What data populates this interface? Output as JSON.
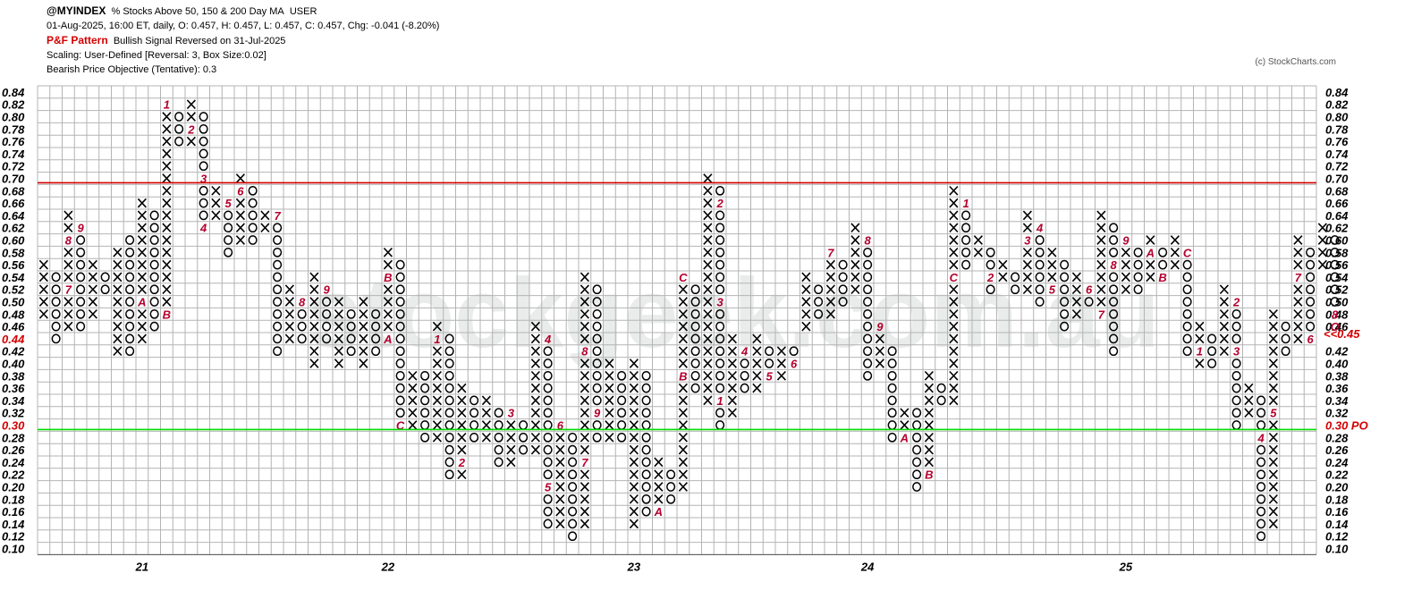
{
  "header": {
    "symbol": "@MYINDEX",
    "name": "% Stocks Above 50, 150 & 200 Day MA",
    "exchange": "USER",
    "quote": "01-Aug-2025, 16:00 ET, daily, O: 0.457, H: 0.457, L: 0.457, C: 0.457, Chg: -0.041 (-8.20%)",
    "pattern_label": "P&F Pattern",
    "pattern_value": "Bullish Signal Reversed on 31-Jul-2025",
    "scaling": "Scaling: User-Defined [Reversal: 3, Box Size:0.02]",
    "objective": "Bearish Price Objective (Tentative): 0.3"
  },
  "credit": "(c) StockCharts.com",
  "watermark": "stockgeek.com.au",
  "colors": {
    "grid": "#b4b4b4",
    "mark": "#000000",
    "month": "#b4002d",
    "resistance": "#d40000",
    "objective": "#00dd00"
  },
  "chart_data": {
    "type": "point-and-figure",
    "box_size": 0.02,
    "reversal": 3,
    "y_range": [
      0.1,
      0.84
    ],
    "y_ticks": [
      "0.84",
      "0.82",
      "0.80",
      "0.78",
      "0.76",
      "0.74",
      "0.72",
      "0.70",
      "0.68",
      "0.66",
      "0.64",
      "0.62",
      "0.60",
      "0.58",
      "0.56",
      "0.54",
      "0.52",
      "0.50",
      "0.48",
      "0.46",
      "0.44",
      "0.42",
      "0.40",
      "0.38",
      "0.36",
      "0.34",
      "0.32",
      "0.30",
      "0.28",
      "0.26",
      "0.24",
      "0.22",
      "0.20",
      "0.18",
      "0.16",
      "0.14",
      "0.12",
      "0.10"
    ],
    "x_labels": [
      {
        "label": "21",
        "column": 8
      },
      {
        "label": "22",
        "column": 28
      },
      {
        "label": "23",
        "column": 48
      },
      {
        "label": "24",
        "column": 67
      },
      {
        "label": "25",
        "column": 88
      }
    ],
    "left_marker": {
      "value": 0.44,
      "text": "0.44"
    },
    "right_marker": {
      "value": 0.45,
      "text": "<<0.45"
    },
    "objective_marker": {
      "value": 0.3,
      "text": "0.30 PO"
    },
    "resistance_line": 0.7,
    "objective_line": 0.3,
    "columns": [
      {
        "t": "X",
        "lo": 0.48,
        "hi": 0.56
      },
      {
        "t": "O",
        "lo": 0.44,
        "hi": 0.54
      },
      {
        "t": "X",
        "lo": 0.46,
        "hi": 0.64,
        "m": [
          [
            0.6,
            "8"
          ],
          [
            0.52,
            "7"
          ]
        ]
      },
      {
        "t": "O",
        "lo": 0.46,
        "hi": 0.62,
        "m": [
          [
            0.62,
            "9"
          ]
        ]
      },
      {
        "t": "X",
        "lo": 0.48,
        "hi": 0.56
      },
      {
        "t": "O",
        "lo": 0.52,
        "hi": 0.54
      },
      {
        "t": "X",
        "lo": 0.42,
        "hi": 0.58
      },
      {
        "t": "O",
        "lo": 0.42,
        "hi": 0.6
      },
      {
        "t": "X",
        "lo": 0.44,
        "hi": 0.66,
        "m": [
          [
            0.5,
            "A"
          ]
        ]
      },
      {
        "t": "O",
        "lo": 0.46,
        "hi": 0.64
      },
      {
        "t": "X",
        "lo": 0.48,
        "hi": 0.82,
        "m": [
          [
            0.82,
            "1"
          ],
          [
            0.48,
            "B"
          ]
        ]
      },
      {
        "t": "O",
        "lo": 0.76,
        "hi": 0.8
      },
      {
        "t": "X",
        "lo": 0.76,
        "hi": 0.82,
        "m": [
          [
            0.78,
            "2"
          ]
        ]
      },
      {
        "t": "O",
        "lo": 0.62,
        "hi": 0.8,
        "m": [
          [
            0.7,
            "3"
          ],
          [
            0.62,
            "4"
          ]
        ]
      },
      {
        "t": "X",
        "lo": 0.64,
        "hi": 0.68
      },
      {
        "t": "O",
        "lo": 0.58,
        "hi": 0.66,
        "m": [
          [
            0.66,
            "5"
          ]
        ]
      },
      {
        "t": "X",
        "lo": 0.6,
        "hi": 0.7,
        "m": [
          [
            0.68,
            "6"
          ]
        ]
      },
      {
        "t": "O",
        "lo": 0.6,
        "hi": 0.68
      },
      {
        "t": "X",
        "lo": 0.62,
        "hi": 0.64
      },
      {
        "t": "O",
        "lo": 0.42,
        "hi": 0.62,
        "m": [
          [
            0.64,
            "7"
          ]
        ]
      },
      {
        "t": "X",
        "lo": 0.44,
        "hi": 0.52
      },
      {
        "t": "O",
        "lo": 0.44,
        "hi": 0.5,
        "m": [
          [
            0.5,
            "8"
          ]
        ]
      },
      {
        "t": "X",
        "lo": 0.4,
        "hi": 0.54
      },
      {
        "t": "O",
        "lo": 0.44,
        "hi": 0.52,
        "m": [
          [
            0.52,
            "9"
          ]
        ]
      },
      {
        "t": "X",
        "lo": 0.4,
        "hi": 0.5
      },
      {
        "t": "O",
        "lo": 0.42,
        "hi": 0.48
      },
      {
        "t": "X",
        "lo": 0.4,
        "hi": 0.5
      },
      {
        "t": "O",
        "lo": 0.42,
        "hi": 0.48
      },
      {
        "t": "X",
        "lo": 0.44,
        "hi": 0.58,
        "m": [
          [
            0.54,
            "B"
          ],
          [
            0.44,
            "A"
          ]
        ]
      },
      {
        "t": "O",
        "lo": 0.3,
        "hi": 0.56,
        "m": [
          [
            0.3,
            "C"
          ]
        ]
      },
      {
        "t": "X",
        "lo": 0.3,
        "hi": 0.38
      },
      {
        "t": "O",
        "lo": 0.28,
        "hi": 0.38
      },
      {
        "t": "X",
        "lo": 0.28,
        "hi": 0.46,
        "m": [
          [
            0.44,
            "1"
          ]
        ]
      },
      {
        "t": "O",
        "lo": 0.22,
        "hi": 0.44
      },
      {
        "t": "X",
        "lo": 0.22,
        "hi": 0.36,
        "m": [
          [
            0.24,
            "2"
          ]
        ]
      },
      {
        "t": "O",
        "lo": 0.28,
        "hi": 0.34
      },
      {
        "t": "X",
        "lo": 0.28,
        "hi": 0.34
      },
      {
        "t": "O",
        "lo": 0.24,
        "hi": 0.32
      },
      {
        "t": "X",
        "lo": 0.24,
        "hi": 0.32,
        "m": [
          [
            0.32,
            "3"
          ]
        ]
      },
      {
        "t": "O",
        "lo": 0.26,
        "hi": 0.3
      },
      {
        "t": "X",
        "lo": 0.26,
        "hi": 0.46
      },
      {
        "t": "O",
        "lo": 0.14,
        "hi": 0.44,
        "m": [
          [
            0.44,
            "4"
          ],
          [
            0.2,
            "5"
          ]
        ]
      },
      {
        "t": "X",
        "lo": 0.14,
        "hi": 0.3,
        "m": [
          [
            0.3,
            "6"
          ]
        ]
      },
      {
        "t": "O",
        "lo": 0.12,
        "hi": 0.28
      },
      {
        "t": "X",
        "lo": 0.14,
        "hi": 0.54,
        "m": [
          [
            0.42,
            "8"
          ],
          [
            0.24,
            "7"
          ]
        ]
      },
      {
        "t": "O",
        "lo": 0.28,
        "hi": 0.52,
        "m": [
          [
            0.32,
            "9"
          ]
        ]
      },
      {
        "t": "X",
        "lo": 0.28,
        "hi": 0.4
      },
      {
        "t": "O",
        "lo": 0.28,
        "hi": 0.38
      },
      {
        "t": "X",
        "lo": 0.14,
        "hi": 0.4
      },
      {
        "t": "O",
        "lo": 0.16,
        "hi": 0.38
      },
      {
        "t": "X",
        "lo": 0.16,
        "hi": 0.24,
        "m": [
          [
            0.16,
            "A"
          ]
        ]
      },
      {
        "t": "O",
        "lo": 0.18,
        "hi": 0.22
      },
      {
        "t": "X",
        "lo": 0.2,
        "hi": 0.54,
        "m": [
          [
            0.54,
            "C"
          ],
          [
            0.38,
            "B"
          ]
        ]
      },
      {
        "t": "O",
        "lo": 0.36,
        "hi": 0.52
      },
      {
        "t": "X",
        "lo": 0.34,
        "hi": 0.7
      },
      {
        "t": "O",
        "lo": 0.3,
        "hi": 0.68,
        "m": [
          [
            0.66,
            "2"
          ],
          [
            0.5,
            "3"
          ],
          [
            0.34,
            "1"
          ]
        ]
      },
      {
        "t": "X",
        "lo": 0.32,
        "hi": 0.44
      },
      {
        "t": "O",
        "lo": 0.36,
        "hi": 0.42,
        "m": [
          [
            0.42,
            "4"
          ]
        ]
      },
      {
        "t": "X",
        "lo": 0.36,
        "hi": 0.44
      },
      {
        "t": "O",
        "lo": 0.38,
        "hi": 0.42,
        "m": [
          [
            0.38,
            "5"
          ]
        ]
      },
      {
        "t": "X",
        "lo": 0.38,
        "hi": 0.42
      },
      {
        "t": "O",
        "lo": 0.4,
        "hi": 0.42,
        "m": [
          [
            0.4,
            "6"
          ]
        ]
      },
      {
        "t": "X",
        "lo": 0.46,
        "hi": 0.54
      },
      {
        "t": "O",
        "lo": 0.48,
        "hi": 0.52
      },
      {
        "t": "X",
        "lo": 0.48,
        "hi": 0.58,
        "m": [
          [
            0.58,
            "7"
          ]
        ]
      },
      {
        "t": "O",
        "lo": 0.5,
        "hi": 0.56
      },
      {
        "t": "X",
        "lo": 0.52,
        "hi": 0.62
      },
      {
        "t": "O",
        "lo": 0.38,
        "hi": 0.6,
        "m": [
          [
            0.6,
            "8"
          ]
        ]
      },
      {
        "t": "X",
        "lo": 0.4,
        "hi": 0.44,
        "m": [
          [
            0.46,
            "9"
          ]
        ]
      },
      {
        "t": "O",
        "lo": 0.28,
        "hi": 0.42
      },
      {
        "t": "X",
        "lo": 0.28,
        "hi": 0.32,
        "m": [
          [
            0.28,
            "A"
          ]
        ]
      },
      {
        "t": "O",
        "lo": 0.2,
        "hi": 0.32
      },
      {
        "t": "X",
        "lo": 0.22,
        "hi": 0.38,
        "m": [
          [
            0.22,
            "B"
          ]
        ]
      },
      {
        "t": "O",
        "lo": 0.34,
        "hi": 0.36
      },
      {
        "t": "X",
        "lo": 0.34,
        "hi": 0.68,
        "m": [
          [
            0.54,
            "C"
          ]
        ]
      },
      {
        "t": "O",
        "lo": 0.56,
        "hi": 0.66,
        "m": [
          [
            0.66,
            "1"
          ]
        ]
      },
      {
        "t": "X",
        "lo": 0.58,
        "hi": 0.6
      },
      {
        "t": "O",
        "lo": 0.52,
        "hi": 0.58,
        "m": [
          [
            0.54,
            "2"
          ]
        ]
      },
      {
        "t": "X",
        "lo": 0.54,
        "hi": 0.56
      },
      {
        "t": "O",
        "lo": 0.52,
        "hi": 0.54
      },
      {
        "t": "X",
        "lo": 0.52,
        "hi": 0.64,
        "m": [
          [
            0.6,
            "3"
          ]
        ]
      },
      {
        "t": "O",
        "lo": 0.5,
        "hi": 0.62,
        "m": [
          [
            0.62,
            "4"
          ]
        ]
      },
      {
        "t": "X",
        "lo": 0.52,
        "hi": 0.58,
        "m": [
          [
            0.52,
            "5"
          ]
        ]
      },
      {
        "t": "O",
        "lo": 0.46,
        "hi": 0.56
      },
      {
        "t": "X",
        "lo": 0.48,
        "hi": 0.54
      },
      {
        "t": "O",
        "lo": 0.5,
        "hi": 0.52,
        "m": [
          [
            0.52,
            "6"
          ]
        ]
      },
      {
        "t": "X",
        "lo": 0.48,
        "hi": 0.64,
        "m": [
          [
            0.48,
            "7"
          ]
        ]
      },
      {
        "t": "O",
        "lo": 0.42,
        "hi": 0.62,
        "m": [
          [
            0.56,
            "8"
          ]
        ]
      },
      {
        "t": "X",
        "lo": 0.52,
        "hi": 0.58,
        "m": [
          [
            0.6,
            "9"
          ]
        ]
      },
      {
        "t": "O",
        "lo": 0.52,
        "hi": 0.58
      },
      {
        "t": "X",
        "lo": 0.54,
        "hi": 0.6,
        "m": [
          [
            0.58,
            "A"
          ]
        ]
      },
      {
        "t": "O",
        "lo": 0.54,
        "hi": 0.58,
        "m": [
          [
            0.54,
            "B"
          ]
        ]
      },
      {
        "t": "X",
        "lo": 0.56,
        "hi": 0.6
      },
      {
        "t": "O",
        "lo": 0.42,
        "hi": 0.58,
        "m": [
          [
            0.58,
            "C"
          ]
        ]
      },
      {
        "t": "X",
        "lo": 0.4,
        "hi": 0.46,
        "m": [
          [
            0.42,
            "1"
          ]
        ]
      },
      {
        "t": "O",
        "lo": 0.4,
        "hi": 0.44
      },
      {
        "t": "X",
        "lo": 0.42,
        "hi": 0.52
      },
      {
        "t": "O",
        "lo": 0.3,
        "hi": 0.5,
        "m": [
          [
            0.5,
            "2"
          ],
          [
            0.42,
            "3"
          ]
        ]
      },
      {
        "t": "X",
        "lo": 0.32,
        "hi": 0.36
      },
      {
        "t": "O",
        "lo": 0.12,
        "hi": 0.34,
        "m": [
          [
            0.28,
            "4"
          ]
        ]
      },
      {
        "t": "X",
        "lo": 0.14,
        "hi": 0.48,
        "m": [
          [
            0.32,
            "5"
          ]
        ]
      },
      {
        "t": "O",
        "lo": 0.42,
        "hi": 0.46
      },
      {
        "t": "X",
        "lo": 0.44,
        "hi": 0.6,
        "m": [
          [
            0.54,
            "7"
          ]
        ]
      },
      {
        "t": "O",
        "lo": 0.44,
        "hi": 0.58,
        "m": [
          [
            0.44,
            "6"
          ]
        ]
      },
      {
        "t": "X",
        "lo": 0.56,
        "hi": 0.62
      },
      {
        "t": "O",
        "lo": 0.46,
        "hi": 0.6,
        "m": [
          [
            0.48,
            "8"
          ],
          [
            0.46,
            "O"
          ]
        ]
      }
    ]
  }
}
